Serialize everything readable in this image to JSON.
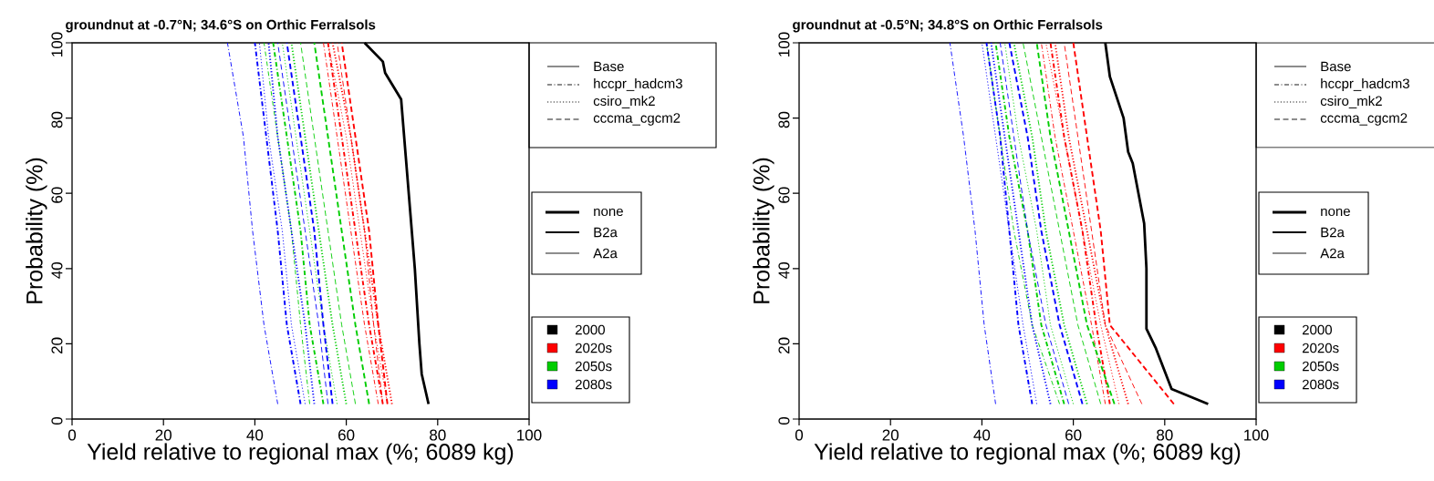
{
  "chart_data": [
    {
      "type": "line",
      "title": "groundnut at -0.7°N; 34.6°S on Orthic Ferralsols",
      "xlabel": "Yield relative to regional max (%; 6089 kg)",
      "ylabel": "Probability (%)",
      "xlim": [
        0,
        100
      ],
      "ylim": [
        0,
        100
      ],
      "xticks": [
        0,
        20,
        40,
        60,
        80,
        100
      ],
      "yticks": [
        0,
        20,
        40,
        60,
        80,
        100
      ],
      "annotations": [
        "Base",
        "hccpr_hadcm3",
        "csiro_mk2",
        "cccma_cgcm2",
        "none",
        "B2a",
        "A2a",
        "2000",
        "2020s",
        "2050s",
        "2080s"
      ],
      "series": [
        {
          "color": "#000000",
          "line_style": "solid",
          "x": [
            64,
            68,
            68.5,
            72,
            73,
            74,
            75,
            76,
            76.5,
            78
          ],
          "values": [
            100,
            95,
            92,
            85,
            70,
            55,
            40,
            20,
            12,
            4
          ]
        },
        {
          "color": "#ff0000",
          "line_style": "dashdot",
          "x": [
            55,
            58,
            61,
            64,
            67
          ],
          "values": [
            100,
            75,
            50,
            25,
            4
          ]
        },
        {
          "color": "#ff0000",
          "line_style": "dashdot",
          "x": [
            56,
            59,
            62,
            65,
            68
          ],
          "values": [
            100,
            75,
            50,
            25,
            4
          ]
        },
        {
          "color": "#ff0000",
          "line_style": "dotted",
          "x": [
            56,
            60,
            63,
            66,
            69
          ],
          "values": [
            100,
            75,
            50,
            25,
            4
          ]
        },
        {
          "color": "#ff0000",
          "line_style": "dotted",
          "x": [
            57,
            61,
            64,
            67,
            70
          ],
          "values": [
            100,
            75,
            50,
            25,
            4
          ]
        },
        {
          "color": "#ff0000",
          "line_style": "dashed",
          "x": [
            58,
            61,
            64,
            66,
            68
          ],
          "values": [
            100,
            75,
            50,
            25,
            4
          ]
        },
        {
          "color": "#ff0000",
          "line_style": "dashed",
          "x": [
            59,
            62,
            65,
            67,
            69
          ],
          "values": [
            100,
            75,
            50,
            25,
            4
          ]
        },
        {
          "color": "#00cd00",
          "line_style": "dashdot",
          "x": [
            42,
            45,
            48,
            50,
            52
          ],
          "values": [
            100,
            75,
            50,
            25,
            4
          ]
        },
        {
          "color": "#00cd00",
          "line_style": "dashdot",
          "x": [
            44,
            47,
            50,
            52,
            55
          ],
          "values": [
            100,
            75,
            50,
            25,
            4
          ]
        },
        {
          "color": "#00cd00",
          "line_style": "dotted",
          "x": [
            46,
            49,
            52,
            55,
            58
          ],
          "values": [
            100,
            75,
            50,
            25,
            4
          ]
        },
        {
          "color": "#00cd00",
          "line_style": "dotted",
          "x": [
            48,
            51,
            54,
            57,
            60
          ],
          "values": [
            100,
            75,
            50,
            25,
            4
          ]
        },
        {
          "color": "#00cd00",
          "line_style": "dashed",
          "x": [
            50,
            53,
            56,
            59,
            62
          ],
          "values": [
            100,
            75,
            50,
            25,
            4
          ]
        },
        {
          "color": "#00cd00",
          "line_style": "dashed",
          "x": [
            53,
            56,
            59,
            62,
            65
          ],
          "values": [
            100,
            75,
            50,
            25,
            4
          ]
        },
        {
          "color": "#0000ff",
          "line_style": "dashdot",
          "x": [
            34,
            37.5,
            39.5,
            42,
            45
          ],
          "values": [
            100,
            75,
            50,
            25,
            4
          ]
        },
        {
          "color": "#0000ff",
          "line_style": "dashdot",
          "x": [
            40,
            42.5,
            45,
            47,
            50
          ],
          "values": [
            100,
            75,
            50,
            25,
            4
          ]
        },
        {
          "color": "#0000ff",
          "line_style": "dotted",
          "x": [
            41,
            43,
            46,
            48,
            51
          ],
          "values": [
            100,
            75,
            50,
            25,
            4
          ]
        },
        {
          "color": "#0000ff",
          "line_style": "dotted",
          "x": [
            43,
            45,
            48,
            51,
            53
          ],
          "values": [
            100,
            75,
            50,
            25,
            4
          ]
        },
        {
          "color": "#0000ff",
          "line_style": "dashed",
          "x": [
            45,
            48,
            51,
            54,
            56
          ],
          "values": [
            100,
            75,
            50,
            25,
            4
          ]
        },
        {
          "color": "#0000ff",
          "line_style": "dashed",
          "x": [
            47,
            50,
            53,
            55,
            57
          ],
          "values": [
            100,
            75,
            50,
            25,
            4
          ]
        }
      ]
    },
    {
      "type": "line",
      "title": "groundnut at -0.5°N; 34.8°S on Orthic Ferralsols",
      "xlabel": "Yield relative to regional max (%; 6089 kg)",
      "ylabel": "Probability (%)",
      "xlim": [
        0,
        100
      ],
      "ylim": [
        0,
        100
      ],
      "xticks": [
        0,
        20,
        40,
        60,
        80,
        100
      ],
      "yticks": [
        0,
        20,
        40,
        60,
        80,
        100
      ],
      "annotations": [
        "Base",
        "hccpr_hadcm3",
        "csiro_mk2",
        "cccma_cgcm2",
        "none",
        "B2a",
        "A2a",
        "2000",
        "2020s",
        "2050s",
        "2080s"
      ],
      "series": [
        {
          "color": "#000000",
          "line_style": "solid",
          "x": [
            67,
            68,
            71,
            72,
            73,
            75.5,
            76,
            76,
            78,
            81.5,
            89.5
          ],
          "values": [
            100,
            91,
            80,
            71,
            68,
            52,
            40,
            24,
            19,
            8,
            4
          ]
        },
        {
          "color": "#ff0000",
          "line_style": "dashdot",
          "x": [
            53,
            56,
            60,
            64,
            67
          ],
          "values": [
            100,
            75,
            50,
            25,
            4
          ]
        },
        {
          "color": "#ff0000",
          "line_style": "dashdot",
          "x": [
            55,
            58,
            62,
            65,
            68
          ],
          "values": [
            100,
            75,
            50,
            25,
            4
          ]
        },
        {
          "color": "#ff0000",
          "line_style": "dotted",
          "x": [
            54,
            58,
            62,
            66,
            70
          ],
          "values": [
            100,
            75,
            50,
            25,
            4
          ]
        },
        {
          "color": "#ff0000",
          "line_style": "dotted",
          "x": [
            56,
            59,
            63,
            67,
            72
          ],
          "values": [
            100,
            75,
            50,
            25,
            4
          ]
        },
        {
          "color": "#ff0000",
          "line_style": "dashed",
          "x": [
            58,
            61,
            64,
            67,
            75
          ],
          "values": [
            100,
            75,
            50,
            25,
            4
          ]
        },
        {
          "color": "#ff0000",
          "line_style": "dashed",
          "x": [
            60,
            63,
            66,
            68,
            82
          ],
          "values": [
            100,
            75,
            50,
            25,
            4
          ]
        },
        {
          "color": "#00cd00",
          "line_style": "dashdot",
          "x": [
            41,
            44,
            47,
            51,
            57
          ],
          "values": [
            100,
            75,
            50,
            25,
            4
          ]
        },
        {
          "color": "#00cd00",
          "line_style": "dashdot",
          "x": [
            43,
            46,
            50,
            53,
            58
          ],
          "values": [
            100,
            75,
            50,
            25,
            4
          ]
        },
        {
          "color": "#00cd00",
          "line_style": "dotted",
          "x": [
            45,
            48,
            52,
            55,
            60
          ],
          "values": [
            100,
            75,
            50,
            25,
            4
          ]
        },
        {
          "color": "#00cd00",
          "line_style": "dotted",
          "x": [
            47,
            51,
            54,
            58,
            63
          ],
          "values": [
            100,
            75,
            50,
            25,
            4
          ]
        },
        {
          "color": "#00cd00",
          "line_style": "dashed",
          "x": [
            49,
            53,
            57,
            61,
            66
          ],
          "values": [
            100,
            75,
            50,
            25,
            4
          ]
        },
        {
          "color": "#00cd00",
          "line_style": "dashed",
          "x": [
            52,
            55,
            59,
            63,
            69
          ],
          "values": [
            100,
            75,
            50,
            25,
            4
          ]
        },
        {
          "color": "#0000ff",
          "line_style": "dashdot",
          "x": [
            33,
            36,
            38.5,
            40.5,
            43
          ],
          "values": [
            100,
            75,
            50,
            25,
            4
          ]
        },
        {
          "color": "#0000ff",
          "line_style": "dashdot",
          "x": [
            41,
            44,
            46,
            48,
            51
          ],
          "values": [
            100,
            75,
            50,
            25,
            4
          ]
        },
        {
          "color": "#0000ff",
          "line_style": "dotted",
          "x": [
            40,
            43,
            46,
            49,
            52
          ],
          "values": [
            100,
            75,
            50,
            25,
            4
          ]
        },
        {
          "color": "#0000ff",
          "line_style": "dotted",
          "x": [
            42,
            45,
            48,
            51,
            55
          ],
          "values": [
            100,
            75,
            50,
            25,
            4
          ]
        },
        {
          "color": "#0000ff",
          "line_style": "dashed",
          "x": [
            44,
            47,
            50,
            54,
            59
          ],
          "values": [
            100,
            75,
            50,
            25,
            4
          ]
        },
        {
          "color": "#0000ff",
          "line_style": "dashed",
          "x": [
            46,
            50,
            53,
            57,
            62
          ],
          "values": [
            100,
            75,
            50,
            25,
            4
          ]
        }
      ]
    }
  ]
}
